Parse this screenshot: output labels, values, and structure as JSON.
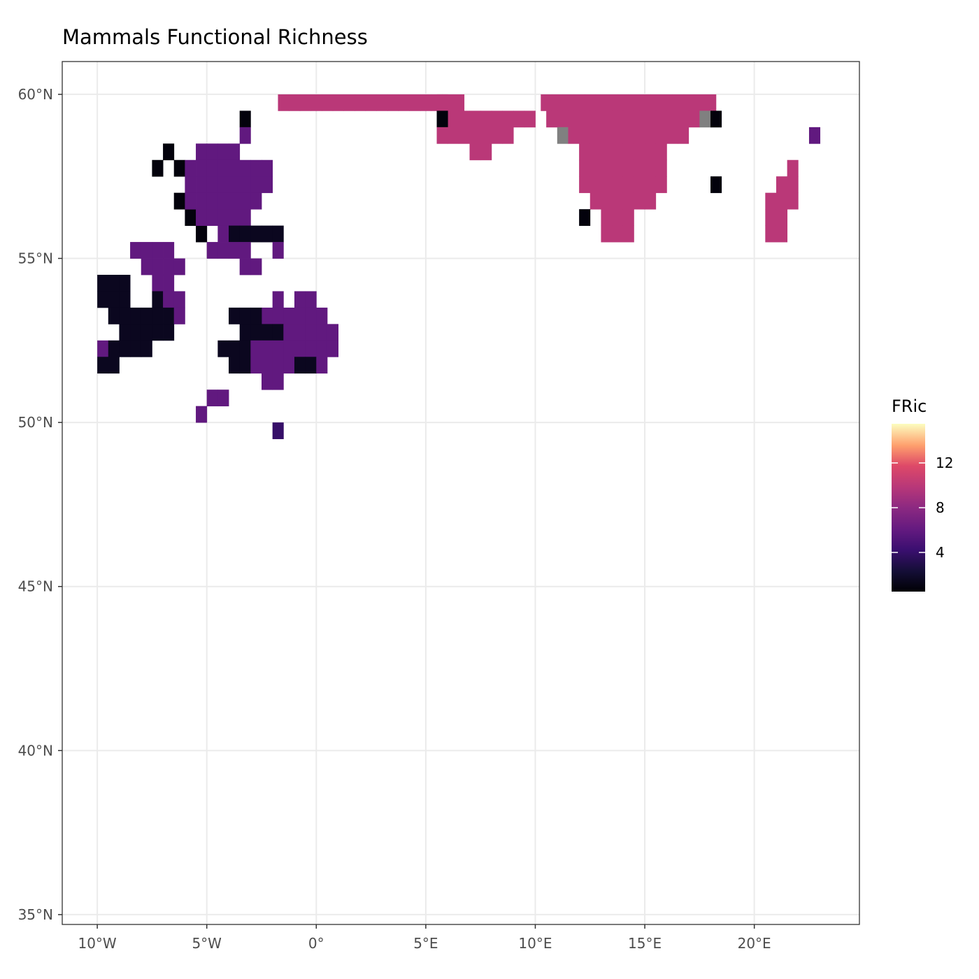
{
  "chart_data": {
    "type": "heatmap",
    "title": "Mammals Functional Richness",
    "xlabel": "",
    "ylabel": "",
    "xlim": [
      -11.6,
      24.8
    ],
    "ylim": [
      34.7,
      61.0
    ],
    "x_ticks": [
      {
        "value": -10,
        "label": "10°W"
      },
      {
        "value": -5,
        "label": "5°W"
      },
      {
        "value": 0,
        "label": "0°"
      },
      {
        "value": 5,
        "label": "5°E"
      },
      {
        "value": 10,
        "label": "10°E"
      },
      {
        "value": 15,
        "label": "15°E"
      },
      {
        "value": 20,
        "label": "20°E"
      }
    ],
    "y_ticks": [
      {
        "value": 35,
        "label": "35°N"
      },
      {
        "value": 40,
        "label": "40°N"
      },
      {
        "value": 45,
        "label": "45°N"
      },
      {
        "value": 50,
        "label": "50°N"
      },
      {
        "value": 55,
        "label": "55°N"
      },
      {
        "value": 60,
        "label": "60°N"
      }
    ],
    "grid": true,
    "legend": {
      "title": "FRic",
      "position": "right",
      "range": [
        0.5,
        15.5
      ],
      "ticks": [
        4,
        8,
        12
      ],
      "palette": "magma",
      "na_color": "#808080"
    },
    "cell_size": [
      0.5,
      0.5
    ],
    "cells": [
      [
        -1.5,
        59.75,
        10
      ],
      [
        -1.0,
        59.75,
        10
      ],
      [
        -0.5,
        59.75,
        10
      ],
      [
        0.0,
        59.75,
        10
      ],
      [
        0.5,
        59.75,
        10
      ],
      [
        1.0,
        59.75,
        10
      ],
      [
        1.5,
        59.75,
        10
      ],
      [
        2.0,
        59.75,
        10
      ],
      [
        2.5,
        59.75,
        10
      ],
      [
        3.0,
        59.75,
        10
      ],
      [
        3.5,
        59.75,
        10
      ],
      [
        4.0,
        59.75,
        10
      ],
      [
        4.5,
        59.75,
        10
      ],
      [
        5.0,
        59.75,
        10
      ],
      [
        5.5,
        59.75,
        10
      ],
      [
        6.0,
        59.75,
        10
      ],
      [
        6.5,
        59.75,
        10
      ],
      [
        10.5,
        59.75,
        10
      ],
      [
        11.0,
        59.75,
        10
      ],
      [
        11.5,
        59.75,
        10
      ],
      [
        12.0,
        59.75,
        10
      ],
      [
        12.5,
        59.75,
        10
      ],
      [
        13.0,
        59.75,
        10
      ],
      [
        13.5,
        59.75,
        10
      ],
      [
        14.0,
        59.75,
        10
      ],
      [
        14.5,
        59.75,
        10
      ],
      [
        15.0,
        59.75,
        10
      ],
      [
        15.5,
        59.75,
        10
      ],
      [
        16.0,
        59.75,
        10
      ],
      [
        16.5,
        59.75,
        10
      ],
      [
        17.0,
        59.75,
        10
      ],
      [
        17.5,
        59.75,
        10
      ],
      [
        18.0,
        59.75,
        10
      ],
      [
        5.75,
        59.75,
        10
      ],
      [
        6.75,
        59.25,
        10
      ],
      [
        7.25,
        59.25,
        10
      ],
      [
        7.75,
        59.25,
        10
      ],
      [
        8.25,
        59.25,
        10
      ],
      [
        8.75,
        59.25,
        10
      ],
      [
        9.25,
        59.25,
        10
      ],
      [
        9.75,
        59.25,
        10
      ],
      [
        6.25,
        59.25,
        10
      ],
      [
        5.75,
        59.25,
        0.8
      ],
      [
        5.75,
        58.75,
        10
      ],
      [
        6.25,
        58.75,
        10
      ],
      [
        6.75,
        58.75,
        10
      ],
      [
        7.25,
        58.75,
        10
      ],
      [
        7.75,
        58.75,
        10
      ],
      [
        8.25,
        58.75,
        10
      ],
      [
        8.75,
        58.75,
        10
      ],
      [
        7.25,
        58.25,
        10
      ],
      [
        7.75,
        58.25,
        10
      ],
      [
        10.75,
        59.25,
        10
      ],
      [
        11.25,
        59.25,
        10
      ],
      [
        11.75,
        59.25,
        10
      ],
      [
        12.25,
        59.25,
        10
      ],
      [
        12.75,
        59.25,
        10
      ],
      [
        13.25,
        59.25,
        10
      ],
      [
        13.75,
        59.25,
        10
      ],
      [
        14.25,
        59.25,
        10
      ],
      [
        14.75,
        59.25,
        10
      ],
      [
        15.25,
        59.25,
        10
      ],
      [
        15.75,
        59.25,
        10
      ],
      [
        16.25,
        59.25,
        10
      ],
      [
        16.75,
        59.25,
        10
      ],
      [
        17.25,
        59.25,
        10
      ],
      [
        17.75,
        59.25,
        null
      ],
      [
        18.25,
        59.25,
        0.8
      ],
      [
        11.25,
        58.75,
        null
      ],
      [
        11.75,
        58.75,
        10
      ],
      [
        12.25,
        58.75,
        10
      ],
      [
        12.75,
        58.75,
        10
      ],
      [
        13.25,
        58.75,
        10
      ],
      [
        13.75,
        58.75,
        10
      ],
      [
        14.25,
        58.75,
        10
      ],
      [
        14.75,
        58.75,
        10
      ],
      [
        15.25,
        58.75,
        10
      ],
      [
        15.75,
        58.75,
        10
      ],
      [
        16.25,
        58.75,
        10
      ],
      [
        16.75,
        58.75,
        10
      ],
      [
        22.75,
        58.75,
        6
      ],
      [
        12.25,
        58.25,
        10
      ],
      [
        12.75,
        58.25,
        10
      ],
      [
        13.25,
        58.25,
        10
      ],
      [
        13.75,
        58.25,
        10
      ],
      [
        14.25,
        58.25,
        10
      ],
      [
        14.75,
        58.25,
        10
      ],
      [
        15.25,
        58.25,
        10
      ],
      [
        15.75,
        58.25,
        10
      ],
      [
        12.25,
        57.75,
        10
      ],
      [
        12.75,
        57.75,
        10
      ],
      [
        13.25,
        57.75,
        10
      ],
      [
        13.75,
        57.75,
        10
      ],
      [
        14.25,
        57.75,
        10
      ],
      [
        14.75,
        57.75,
        10
      ],
      [
        15.25,
        57.75,
        10
      ],
      [
        15.75,
        57.75,
        10
      ],
      [
        21.75,
        57.75,
        10
      ],
      [
        12.25,
        57.25,
        10
      ],
      [
        12.75,
        57.25,
        10
      ],
      [
        13.25,
        57.25,
        10
      ],
      [
        13.75,
        57.25,
        10
      ],
      [
        14.25,
        57.25,
        10
      ],
      [
        14.75,
        57.25,
        10
      ],
      [
        15.25,
        57.25,
        10
      ],
      [
        15.75,
        57.25,
        10
      ],
      [
        18.25,
        57.25,
        0.8
      ],
      [
        21.25,
        57.25,
        10
      ],
      [
        21.75,
        57.25,
        10
      ],
      [
        12.75,
        56.75,
        10
      ],
      [
        13.25,
        56.75,
        10
      ],
      [
        13.75,
        56.75,
        10
      ],
      [
        14.25,
        56.75,
        10
      ],
      [
        14.75,
        56.75,
        10
      ],
      [
        15.25,
        56.75,
        10
      ],
      [
        20.75,
        56.75,
        10
      ],
      [
        21.25,
        56.75,
        10
      ],
      [
        21.75,
        56.75,
        10
      ],
      [
        13.25,
        56.25,
        10
      ],
      [
        13.75,
        56.25,
        10
      ],
      [
        14.25,
        56.25,
        10
      ],
      [
        12.25,
        56.25,
        0.8
      ],
      [
        20.75,
        56.25,
        10
      ],
      [
        21.25,
        56.25,
        10
      ],
      [
        13.25,
        55.75,
        10
      ],
      [
        13.75,
        55.75,
        10
      ],
      [
        14.25,
        55.75,
        10
      ],
      [
        20.75,
        55.75,
        10
      ],
      [
        21.25,
        55.75,
        10
      ],
      [
        -3.25,
        59.25,
        0.8
      ],
      [
        -3.25,
        58.75,
        6
      ],
      [
        -6.75,
        58.25,
        0.8
      ],
      [
        -7.25,
        57.75,
        0.8
      ],
      [
        -6.25,
        57.75,
        0.8
      ],
      [
        -6.25,
        56.75,
        0.8
      ],
      [
        -5.75,
        56.25,
        0.8
      ],
      [
        -5.25,
        55.75,
        0.8
      ],
      [
        -5.25,
        58.25,
        6
      ],
      [
        -4.75,
        58.25,
        6
      ],
      [
        -4.25,
        58.25,
        6
      ],
      [
        -3.75,
        58.25,
        6
      ],
      [
        -5.75,
        57.75,
        6
      ],
      [
        -5.25,
        57.75,
        6
      ],
      [
        -4.75,
        57.75,
        6
      ],
      [
        -4.25,
        57.75,
        6
      ],
      [
        -3.75,
        57.75,
        6
      ],
      [
        -3.25,
        57.75,
        6
      ],
      [
        -2.75,
        57.75,
        6
      ],
      [
        -2.25,
        57.75,
        6
      ],
      [
        -5.75,
        57.25,
        6
      ],
      [
        -5.25,
        57.25,
        6
      ],
      [
        -4.75,
        57.25,
        6
      ],
      [
        -4.25,
        57.25,
        6
      ],
      [
        -3.75,
        57.25,
        6
      ],
      [
        -3.25,
        57.25,
        6
      ],
      [
        -2.75,
        57.25,
        6
      ],
      [
        -2.25,
        57.25,
        6
      ],
      [
        -5.75,
        56.75,
        6
      ],
      [
        -5.25,
        56.75,
        6
      ],
      [
        -4.75,
        56.75,
        6
      ],
      [
        -4.25,
        56.75,
        6
      ],
      [
        -3.75,
        56.75,
        6
      ],
      [
        -3.25,
        56.75,
        6
      ],
      [
        -2.75,
        56.75,
        6
      ],
      [
        -5.25,
        56.25,
        6
      ],
      [
        -4.75,
        56.25,
        6
      ],
      [
        -4.25,
        56.25,
        6
      ],
      [
        -3.75,
        56.25,
        6
      ],
      [
        -3.25,
        56.25,
        6
      ],
      [
        -4.25,
        55.75,
        6
      ],
      [
        -3.75,
        55.75,
        1.5
      ],
      [
        -3.25,
        55.75,
        1.5
      ],
      [
        -2.75,
        55.75,
        1.5
      ],
      [
        -2.25,
        55.75,
        1.5
      ],
      [
        -1.75,
        55.75,
        1.5
      ],
      [
        -4.75,
        55.25,
        6
      ],
      [
        -4.25,
        55.25,
        6
      ],
      [
        -3.75,
        55.25,
        6
      ],
      [
        -3.25,
        55.25,
        6
      ],
      [
        -1.75,
        55.25,
        6
      ],
      [
        -3.25,
        54.75,
        6
      ],
      [
        -2.75,
        54.75,
        6
      ],
      [
        -8.25,
        55.25,
        6
      ],
      [
        -7.75,
        55.25,
        6
      ],
      [
        -7.25,
        55.25,
        6
      ],
      [
        -6.75,
        55.25,
        6
      ],
      [
        -7.75,
        54.75,
        6
      ],
      [
        -7.25,
        54.75,
        6
      ],
      [
        -6.75,
        54.75,
        6
      ],
      [
        -6.25,
        54.75,
        6
      ],
      [
        -9.75,
        54.25,
        1.5
      ],
      [
        -9.25,
        54.25,
        1.5
      ],
      [
        -8.75,
        54.25,
        1.5
      ],
      [
        -7.25,
        54.25,
        6
      ],
      [
        -6.75,
        54.25,
        6
      ],
      [
        -9.75,
        53.75,
        1.5
      ],
      [
        -9.25,
        53.75,
        1.5
      ],
      [
        -8.75,
        53.75,
        1.5
      ],
      [
        -7.25,
        53.75,
        1.5
      ],
      [
        -6.75,
        53.75,
        6
      ],
      [
        -6.25,
        53.75,
        6
      ],
      [
        -1.75,
        53.75,
        6
      ],
      [
        -0.75,
        53.75,
        6
      ],
      [
        -0.25,
        53.75,
        6
      ],
      [
        -9.25,
        53.25,
        1.5
      ],
      [
        -8.75,
        53.25,
        1.5
      ],
      [
        -8.25,
        53.25,
        1.5
      ],
      [
        -7.75,
        53.25,
        1.5
      ],
      [
        -7.25,
        53.25,
        1.5
      ],
      [
        -6.75,
        53.25,
        1.5
      ],
      [
        -6.25,
        53.25,
        6
      ],
      [
        -2.25,
        53.25,
        6
      ],
      [
        -3.75,
        53.25,
        1.5
      ],
      [
        -3.25,
        53.25,
        1.5
      ],
      [
        -2.75,
        53.25,
        1.5
      ],
      [
        -1.75,
        53.25,
        6
      ],
      [
        -1.25,
        53.25,
        6
      ],
      [
        -0.75,
        53.25,
        6
      ],
      [
        -0.25,
        53.25,
        6
      ],
      [
        0.25,
        53.25,
        6
      ],
      [
        -8.75,
        52.75,
        1.5
      ],
      [
        -8.25,
        52.75,
        1.5
      ],
      [
        -7.75,
        52.75,
        1.5
      ],
      [
        -7.25,
        52.75,
        1.5
      ],
      [
        -6.75,
        52.75,
        1.5
      ],
      [
        -3.25,
        52.75,
        1.5
      ],
      [
        -2.75,
        52.75,
        1.5
      ],
      [
        -2.25,
        52.75,
        1.5
      ],
      [
        -1.75,
        52.75,
        1.5
      ],
      [
        -1.25,
        52.75,
        6
      ],
      [
        -0.75,
        52.75,
        6
      ],
      [
        -0.25,
        52.75,
        6
      ],
      [
        0.25,
        52.75,
        6
      ],
      [
        0.75,
        52.75,
        6
      ],
      [
        -9.75,
        52.25,
        6
      ],
      [
        -9.25,
        52.25,
        1.5
      ],
      [
        -8.75,
        52.25,
        1.5
      ],
      [
        -8.25,
        52.25,
        1.5
      ],
      [
        -7.75,
        52.25,
        1.5
      ],
      [
        -4.25,
        52.25,
        1.5
      ],
      [
        -3.75,
        52.25,
        1.5
      ],
      [
        -3.25,
        52.25,
        1.5
      ],
      [
        -2.75,
        52.25,
        6
      ],
      [
        -2.25,
        52.25,
        6
      ],
      [
        -1.75,
        52.25,
        6
      ],
      [
        -1.25,
        52.25,
        6
      ],
      [
        -0.75,
        52.25,
        6
      ],
      [
        -0.25,
        52.25,
        6
      ],
      [
        0.25,
        52.25,
        6
      ],
      [
        0.75,
        52.25,
        6
      ],
      [
        -9.75,
        51.75,
        1.5
      ],
      [
        -9.25,
        51.75,
        1.5
      ],
      [
        -3.75,
        51.75,
        1.5
      ],
      [
        -3.25,
        51.75,
        1.5
      ],
      [
        -2.75,
        51.75,
        6
      ],
      [
        -2.25,
        51.75,
        6
      ],
      [
        -1.75,
        51.75,
        6
      ],
      [
        -1.25,
        51.75,
        6
      ],
      [
        -0.75,
        51.75,
        1.5
      ],
      [
        -0.25,
        51.75,
        1.5
      ],
      [
        0.25,
        51.75,
        6
      ],
      [
        -2.25,
        51.25,
        6
      ],
      [
        -1.75,
        51.25,
        6
      ],
      [
        -4.75,
        50.75,
        6
      ],
      [
        -4.25,
        50.75,
        6
      ],
      [
        -5.25,
        50.25,
        6
      ],
      [
        -1.75,
        49.75,
        4
      ]
    ]
  }
}
